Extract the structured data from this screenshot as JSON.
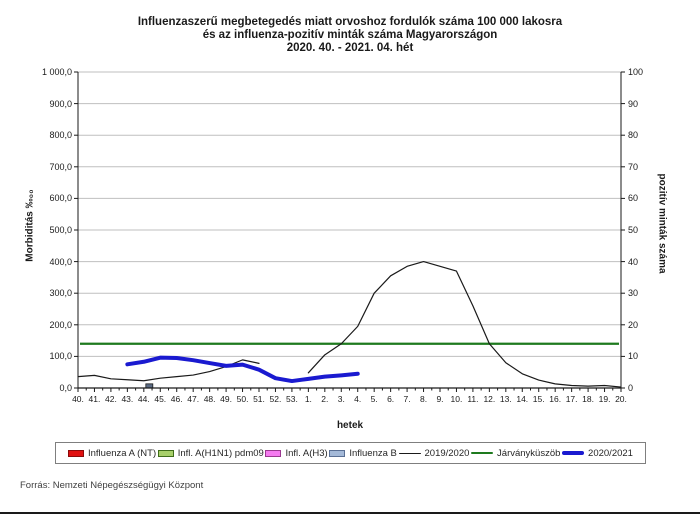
{
  "title": {
    "line1": "Influenzaszerű megbetegedés miatt orvoshoz fordulók száma 100 000 lakosra",
    "line2": "és az influenza-pozitív minták száma Magyarországon",
    "line3": "2020. 40. - 2021. 04. hét"
  },
  "footer": "Forrás: Nemzeti Népegészségügyi Központ",
  "chart_data": {
    "type": "line",
    "x": [
      "40.",
      "41.",
      "42.",
      "43.",
      "44.",
      "45.",
      "46.",
      "47.",
      "48.",
      "49.",
      "50.",
      "51.",
      "52.",
      "53.",
      "1.",
      "2.",
      "3.",
      "4.",
      "5.",
      "6.",
      "7.",
      "8.",
      "9.",
      "10.",
      "11.",
      "12.",
      "13.",
      "14.",
      "15.",
      "16.",
      "17.",
      "18.",
      "19.",
      "20."
    ],
    "x_axis": {
      "title": "hetek"
    },
    "y_axis_left": {
      "title": "Morbiditás ‰₀₀",
      "min": 0,
      "max": 1000,
      "step": 100,
      "tick_labels": [
        "1 000,0",
        "900,0",
        "800,0",
        "700,0",
        "600,0",
        "500,0",
        "400,0",
        "300,0",
        "200,0",
        "100,0",
        "0,0"
      ]
    },
    "y_axis_right": {
      "title": "pozitív minták száma",
      "min": 0,
      "max": 100,
      "step": 10,
      "tick_labels": [
        "100",
        "90",
        "80",
        "70",
        "60",
        "50",
        "40",
        "30",
        "20",
        "10",
        "0"
      ]
    },
    "grid": true,
    "legend_position": "bottom",
    "series": [
      {
        "name": "2019/2020",
        "axis": "left",
        "color": "#1a1a1a",
        "width": 1.2,
        "values": [
          36,
          40,
          29,
          26,
          23,
          31,
          36,
          41,
          52,
          68,
          89,
          78,
          null,
          null,
          48,
          105,
          140,
          195,
          300,
          355,
          385,
          400,
          385,
          370,
          260,
          140,
          80,
          45,
          25,
          13,
          8,
          6,
          8,
          3
        ]
      },
      {
        "name": "2020/2021",
        "axis": "left",
        "color": "#1a1ad0",
        "width": 4,
        "values": [
          null,
          null,
          null,
          75,
          83,
          96,
          95,
          88,
          79,
          70,
          74,
          58,
          31,
          22,
          29,
          36,
          40,
          45,
          null,
          null,
          null,
          null,
          null,
          null,
          null,
          null,
          null,
          null,
          null,
          null,
          null,
          null,
          null,
          null
        ]
      }
    ],
    "threshold": {
      "name": "Járványküszöb",
      "axis": "left",
      "color": "#1e7a1e",
      "width": 2.2,
      "value": 140
    },
    "positive_sample_bars": [
      {
        "week": "44.",
        "value": 1,
        "fill": "#5b6b84",
        "border": "#1a1a1a"
      }
    ]
  },
  "legend": {
    "items": [
      {
        "label": "Influenza A (NT)",
        "type": "bar",
        "fill": "#e01010",
        "border": "#8a0a0a"
      },
      {
        "label": "Infl. A(H1N1) pdm09",
        "type": "bar",
        "fill": "#a8d06a",
        "border": "#3f6d1a"
      },
      {
        "label": "Infl. A(H3)",
        "type": "bar",
        "fill": "#f57af0",
        "border": "#99388f"
      },
      {
        "label": "Influenza B",
        "type": "bar",
        "fill": "#a4b9d8",
        "border": "#5a6f94"
      },
      {
        "label": "2019/2020",
        "type": "line",
        "color": "#1a1a1a",
        "weight": 1
      },
      {
        "label": "Járványküszöb",
        "type": "line",
        "color": "#1e7a1e",
        "weight": 2
      },
      {
        "label": "2020/2021",
        "type": "line",
        "color": "#1a1ad0",
        "weight": 4
      }
    ]
  }
}
